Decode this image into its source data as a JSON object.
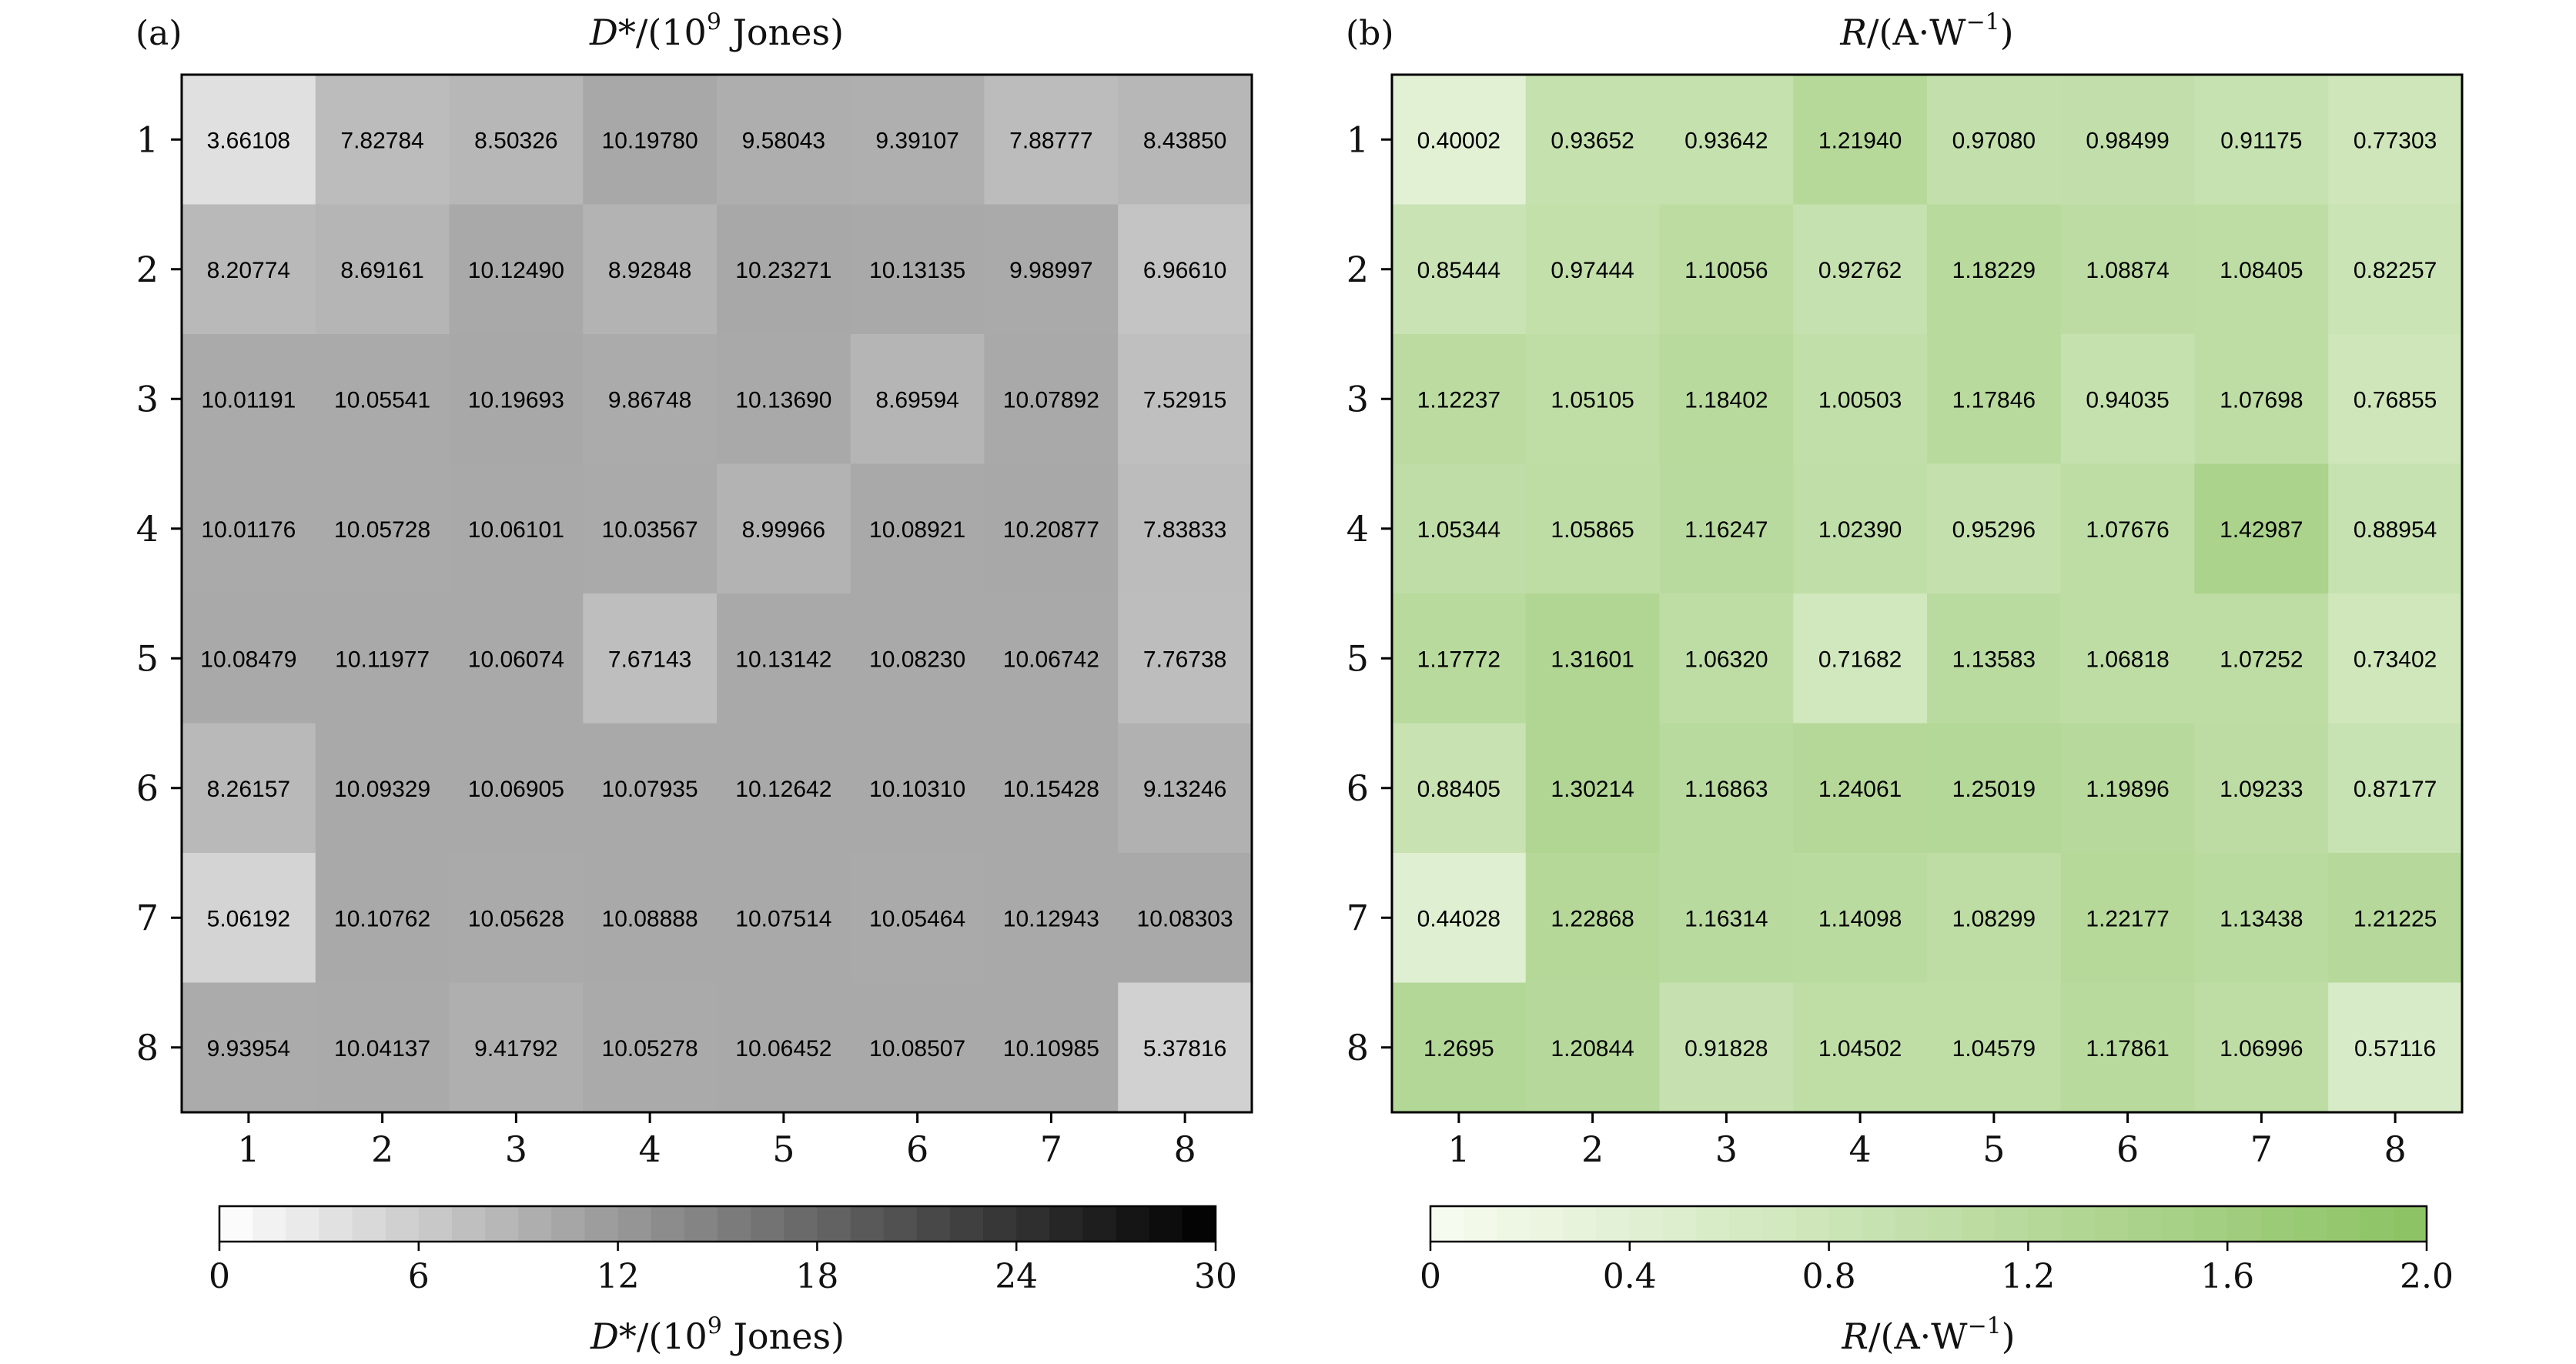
{
  "chart_data": [
    {
      "type": "heatmap",
      "panel_label": "(a)",
      "title_italic": "D",
      "title_rest": "*/(10",
      "title_sup": "9",
      "title_tail": " Jones)",
      "x": [
        "1",
        "2",
        "3",
        "4",
        "5",
        "6",
        "7",
        "8"
      ],
      "y": [
        "1",
        "2",
        "3",
        "4",
        "5",
        "6",
        "7",
        "8"
      ],
      "values": [
        [
          "3.66108",
          "7.82784",
          "8.50326",
          "10.19780",
          "9.58043",
          "9.39107",
          "7.88777",
          "8.43850"
        ],
        [
          "8.20774",
          "8.69161",
          "10.12490",
          "8.92848",
          "10.23271",
          "10.13135",
          "9.98997",
          "6.96610"
        ],
        [
          "10.01191",
          "10.05541",
          "10.19693",
          "9.86748",
          "10.13690",
          "8.69594",
          "10.07892",
          "7.52915"
        ],
        [
          "10.01176",
          "10.05728",
          "10.06101",
          "10.03567",
          "8.99966",
          "10.08921",
          "10.20877",
          "7.83833"
        ],
        [
          "10.08479",
          "10.11977",
          "10.06074",
          "7.67143",
          "10.13142",
          "10.08230",
          "10.06742",
          "7.76738"
        ],
        [
          "8.26157",
          "10.09329",
          "10.06905",
          "10.07935",
          "10.12642",
          "10.10310",
          "10.15428",
          "9.13246"
        ],
        [
          "5.06192",
          "10.10762",
          "10.05628",
          "10.08888",
          "10.07514",
          "10.05464",
          "10.12943",
          "10.08303"
        ],
        [
          "9.93954",
          "10.04137",
          "9.41792",
          "10.05278",
          "10.06452",
          "10.08507",
          "10.10985",
          "5.37816"
        ]
      ],
      "colorbar": {
        "range": [
          0,
          30
        ],
        "ticks": [
          "0",
          "6",
          "12",
          "18",
          "24",
          "30"
        ],
        "label_italic": "D",
        "label_rest": "*/(10",
        "label_sup": "9",
        "label_tail": " Jones)",
        "color_low": "#ffffff",
        "color_high": "#000000"
      }
    },
    {
      "type": "heatmap",
      "panel_label": "(b)",
      "title_italic": "R",
      "title_rest": "/(A·W",
      "title_sup": "−1",
      "title_tail": ")",
      "x": [
        "1",
        "2",
        "3",
        "4",
        "5",
        "6",
        "7",
        "8"
      ],
      "y": [
        "1",
        "2",
        "3",
        "4",
        "5",
        "6",
        "7",
        "8"
      ],
      "values": [
        [
          "0.40002",
          "0.93652",
          "0.93642",
          "1.21940",
          "0.97080",
          "0.98499",
          "0.91175",
          "0.77303"
        ],
        [
          "0.85444",
          "0.97444",
          "1.10056",
          "0.92762",
          "1.18229",
          "1.08874",
          "1.08405",
          "0.82257"
        ],
        [
          "1.12237",
          "1.05105",
          "1.18402",
          "1.00503",
          "1.17846",
          "0.94035",
          "1.07698",
          "0.76855"
        ],
        [
          "1.05344",
          "1.05865",
          "1.16247",
          "1.02390",
          "0.95296",
          "1.07676",
          "1.42987",
          "0.88954"
        ],
        [
          "1.17772",
          "1.31601",
          "1.06320",
          "0.71682",
          "1.13583",
          "1.06818",
          "1.07252",
          "0.73402"
        ],
        [
          "0.88405",
          "1.30214",
          "1.16863",
          "1.24061",
          "1.25019",
          "1.19896",
          "1.09233",
          "0.87177"
        ],
        [
          "0.44028",
          "1.22868",
          "1.16314",
          "1.14098",
          "1.08299",
          "1.22177",
          "1.13438",
          "1.21225"
        ],
        [
          "1.2695",
          "1.20844",
          "0.91828",
          "1.04502",
          "1.04579",
          "1.17861",
          "1.06996",
          "0.57116"
        ]
      ],
      "colorbar": {
        "range": [
          0,
          2.0
        ],
        "ticks": [
          "0",
          "0.4",
          "0.8",
          "1.2",
          "1.6",
          "2.0"
        ],
        "label_italic": "R",
        "label_rest": "/(A·W",
        "label_sup": "−1",
        "label_tail": ")",
        "color_low": "#f7fcf0",
        "color_high": "#8cc263"
      }
    }
  ]
}
